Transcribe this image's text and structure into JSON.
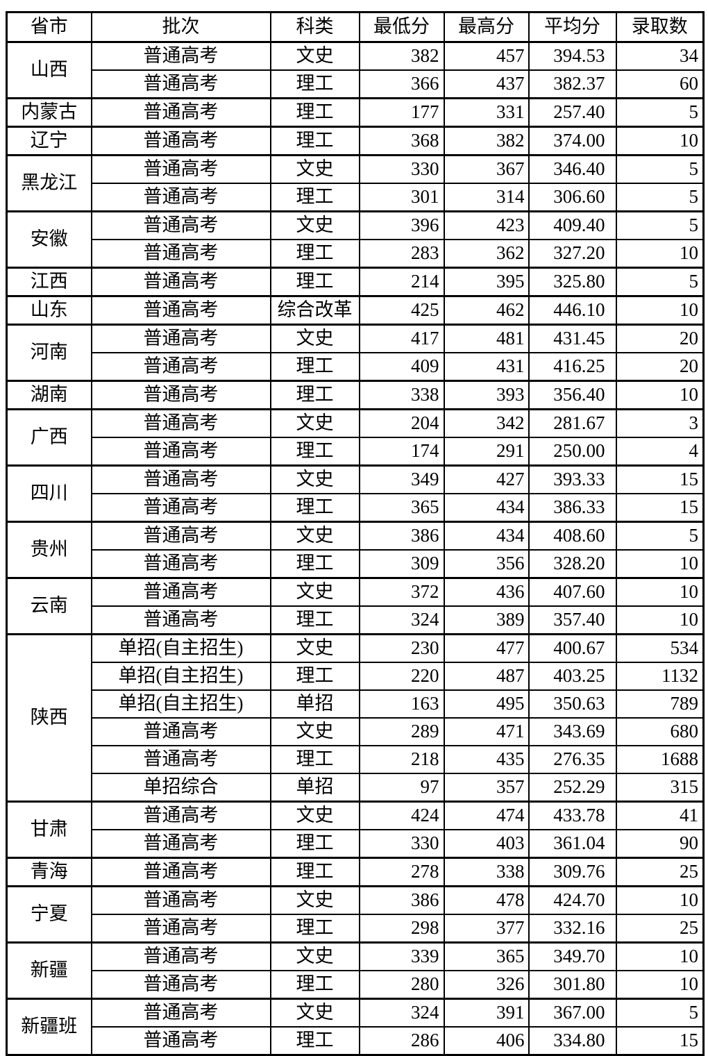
{
  "colors": {
    "border": "#000000",
    "background": "#ffffff",
    "text": "#000000"
  },
  "table": {
    "columns": [
      {
        "key": "province",
        "label": "省市"
      },
      {
        "key": "batch",
        "label": "批次"
      },
      {
        "key": "subject",
        "label": "科类"
      },
      {
        "key": "min",
        "label": "最低分"
      },
      {
        "key": "max",
        "label": "最高分"
      },
      {
        "key": "avg",
        "label": "平均分"
      },
      {
        "key": "count",
        "label": "录取数"
      }
    ],
    "groups": [
      {
        "province": "山西",
        "rows": [
          [
            "普通高考",
            "文史",
            "382",
            "457",
            "394.53",
            "34"
          ],
          [
            "普通高考",
            "理工",
            "366",
            "437",
            "382.37",
            "60"
          ]
        ]
      },
      {
        "province": "内蒙古",
        "rows": [
          [
            "普通高考",
            "理工",
            "177",
            "331",
            "257.40",
            "5"
          ]
        ]
      },
      {
        "province": "辽宁",
        "rows": [
          [
            "普通高考",
            "理工",
            "368",
            "382",
            "374.00",
            "10"
          ]
        ]
      },
      {
        "province": "黑龙江",
        "rows": [
          [
            "普通高考",
            "文史",
            "330",
            "367",
            "346.40",
            "5"
          ],
          [
            "普通高考",
            "理工",
            "301",
            "314",
            "306.60",
            "5"
          ]
        ]
      },
      {
        "province": "安徽",
        "rows": [
          [
            "普通高考",
            "文史",
            "396",
            "423",
            "409.40",
            "5"
          ],
          [
            "普通高考",
            "理工",
            "283",
            "362",
            "327.20",
            "10"
          ]
        ]
      },
      {
        "province": "江西",
        "rows": [
          [
            "普通高考",
            "理工",
            "214",
            "395",
            "325.80",
            "5"
          ]
        ]
      },
      {
        "province": "山东",
        "rows": [
          [
            "普通高考",
            "综合改革",
            "425",
            "462",
            "446.10",
            "10"
          ]
        ]
      },
      {
        "province": "河南",
        "rows": [
          [
            "普通高考",
            "文史",
            "417",
            "481",
            "431.45",
            "20"
          ],
          [
            "普通高考",
            "理工",
            "409",
            "431",
            "416.25",
            "20"
          ]
        ]
      },
      {
        "province": "湖南",
        "rows": [
          [
            "普通高考",
            "理工",
            "338",
            "393",
            "356.40",
            "10"
          ]
        ]
      },
      {
        "province": "广西",
        "rows": [
          [
            "普通高考",
            "文史",
            "204",
            "342",
            "281.67",
            "3"
          ],
          [
            "普通高考",
            "理工",
            "174",
            "291",
            "250.00",
            "4"
          ]
        ]
      },
      {
        "province": "四川",
        "rows": [
          [
            "普通高考",
            "文史",
            "349",
            "427",
            "393.33",
            "15"
          ],
          [
            "普通高考",
            "理工",
            "365",
            "434",
            "386.33",
            "15"
          ]
        ]
      },
      {
        "province": "贵州",
        "rows": [
          [
            "普通高考",
            "文史",
            "386",
            "434",
            "408.60",
            "5"
          ],
          [
            "普通高考",
            "理工",
            "309",
            "356",
            "328.20",
            "10"
          ]
        ]
      },
      {
        "province": "云南",
        "rows": [
          [
            "普通高考",
            "文史",
            "372",
            "436",
            "407.60",
            "10"
          ],
          [
            "普通高考",
            "理工",
            "324",
            "389",
            "357.40",
            "10"
          ]
        ]
      },
      {
        "province": "陕西",
        "rows": [
          [
            "单招(自主招生)",
            "文史",
            "230",
            "477",
            "400.67",
            "534"
          ],
          [
            "单招(自主招生)",
            "理工",
            "220",
            "487",
            "403.25",
            "1132"
          ],
          [
            "单招(自主招生)",
            "单招",
            "163",
            "495",
            "350.63",
            "789"
          ],
          [
            "普通高考",
            "文史",
            "289",
            "471",
            "343.69",
            "680"
          ],
          [
            "普通高考",
            "理工",
            "218",
            "435",
            "276.35",
            "1688"
          ],
          [
            "单招综合",
            "单招",
            "97",
            "357",
            "252.29",
            "315"
          ]
        ]
      },
      {
        "province": "甘肃",
        "rows": [
          [
            "普通高考",
            "文史",
            "424",
            "474",
            "433.78",
            "41"
          ],
          [
            "普通高考",
            "理工",
            "330",
            "403",
            "361.04",
            "90"
          ]
        ]
      },
      {
        "province": "青海",
        "rows": [
          [
            "普通高考",
            "理工",
            "278",
            "338",
            "309.76",
            "25"
          ]
        ]
      },
      {
        "province": "宁夏",
        "rows": [
          [
            "普通高考",
            "文史",
            "386",
            "478",
            "424.70",
            "10"
          ],
          [
            "普通高考",
            "理工",
            "298",
            "377",
            "332.16",
            "25"
          ]
        ]
      },
      {
        "province": "新疆",
        "rows": [
          [
            "普通高考",
            "文史",
            "339",
            "365",
            "349.70",
            "10"
          ],
          [
            "普通高考",
            "理工",
            "280",
            "326",
            "301.80",
            "10"
          ]
        ]
      },
      {
        "province": "新疆班",
        "rows": [
          [
            "普通高考",
            "文史",
            "324",
            "391",
            "367.00",
            "5"
          ],
          [
            "普通高考",
            "理工",
            "286",
            "406",
            "334.80",
            "15"
          ]
        ]
      }
    ]
  }
}
